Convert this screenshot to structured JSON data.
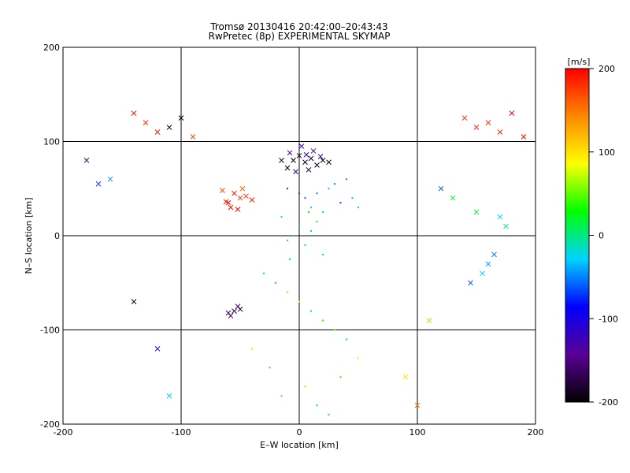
{
  "title": "Tromsø 20130416 20:42:00–20:43:43",
  "subtitle": "RwPretec (8p) EXPERIMENTAL SKYMAP",
  "chart_data": {
    "type": "scatter",
    "title": "Tromsø 20130416 20:42:00–20:43:43",
    "subtitle": "RwPretec (8p) EXPERIMENTAL SKYMAP",
    "xlabel": "E–W location [km]",
    "ylabel": "N–S location [km]",
    "xlim": [
      -200,
      200
    ],
    "ylim": [
      -200,
      200
    ],
    "xticks": [
      -200,
      -100,
      0,
      100,
      200
    ],
    "yticks": [
      -200,
      -100,
      0,
      100,
      200
    ],
    "grid": true,
    "colorbar": {
      "label": "[m/s]",
      "range": [
        -200,
        200
      ],
      "ticks": [
        200,
        100,
        0,
        -100,
        -200
      ],
      "colors": [
        "#000000",
        "#5a0096",
        "#0000ff",
        "#00d2ff",
        "#00ff00",
        "#ffff00",
        "#ff8800",
        "#ff0000"
      ]
    },
    "marker_types": [
      "x",
      "dot"
    ],
    "series": [
      {
        "x": [
          -5,
          0,
          5,
          10,
          15,
          -10,
          -15,
          20,
          25,
          8,
          -3,
          12,
          -8,
          18,
          2,
          6
        ],
        "y": [
          80,
          85,
          78,
          82,
          75,
          72,
          80,
          80,
          78,
          70,
          68,
          90,
          88,
          84,
          95,
          86
        ],
        "v": [
          -200,
          -190,
          -200,
          -185,
          -195,
          -200,
          -180,
          -190,
          -200,
          -170,
          -160,
          -150,
          -140,
          -130,
          -120,
          -110
        ],
        "marker": "x"
      },
      {
        "x": [
          -50,
          -55,
          -60,
          -45,
          -40,
          -58,
          -65,
          -48,
          -52,
          -62
        ],
        "y": [
          40,
          45,
          35,
          42,
          38,
          30,
          48,
          50,
          28,
          36
        ],
        "v": [
          180,
          190,
          200,
          175,
          185,
          195,
          170,
          160,
          200,
          190
        ],
        "marker": "x"
      },
      {
        "x": [
          5,
          15,
          25,
          35,
          10,
          20,
          30,
          40,
          0,
          -10,
          45,
          50
        ],
        "y": [
          40,
          45,
          50,
          35,
          30,
          25,
          55,
          60,
          45,
          50,
          40,
          30
        ],
        "v": [
          -60,
          -50,
          -40,
          -70,
          -30,
          -20,
          -55,
          -45,
          -65,
          -75,
          -35,
          -25
        ],
        "marker": "dot"
      },
      {
        "x": [
          -5,
          0,
          5,
          10,
          -10,
          15,
          -15,
          20,
          8,
          -8
        ],
        "y": [
          0,
          10,
          -10,
          5,
          -5,
          15,
          20,
          -20,
          25,
          -25
        ],
        "v": [
          -10,
          0,
          10,
          5,
          -5,
          15,
          20,
          -20,
          25,
          -15
        ],
        "marker": "dot"
      },
      {
        "x": [
          -55,
          -58,
          -52,
          -50,
          -60
        ],
        "y": [
          -80,
          -85,
          -75,
          -78,
          -82
        ],
        "v": [
          -170,
          -160,
          -150,
          -175,
          -165
        ],
        "marker": "x"
      },
      {
        "x": [
          -140,
          -130,
          -120,
          -110,
          -100,
          -90,
          160,
          170,
          180,
          150,
          140,
          190
        ],
        "y": [
          130,
          120,
          110,
          115,
          125,
          105,
          120,
          110,
          130,
          115,
          125,
          105
        ],
        "v": [
          190,
          180,
          200,
          -200,
          -195,
          170,
          180,
          190,
          200,
          185,
          175,
          195
        ],
        "marker": "x"
      },
      {
        "x": [
          160,
          155,
          165,
          170,
          150,
          145,
          175,
          -160,
          -170,
          -180,
          -140,
          120,
          130,
          110,
          -120,
          -110,
          100,
          90
        ],
        "y": [
          -30,
          -40,
          -20,
          20,
          25,
          -50,
          10,
          60,
          55,
          80,
          -70,
          50,
          40,
          -90,
          -120,
          -170,
          -180,
          -150
        ],
        "v": [
          -40,
          -30,
          -50,
          -20,
          10,
          -60,
          0,
          -45,
          -70,
          -150,
          -200,
          -60,
          20,
          60,
          -80,
          -30,
          150,
          100
        ],
        "marker": "x"
      },
      {
        "x": [
          -30,
          -20,
          -10,
          0,
          10,
          20,
          30,
          40,
          -40,
          50,
          -25,
          35,
          5,
          -15,
          15,
          25
        ],
        "y": [
          -40,
          -50,
          -60,
          -70,
          -80,
          -90,
          -100,
          -110,
          -120,
          -130,
          -140,
          -150,
          -160,
          -170,
          -180,
          -190
        ],
        "v": [
          10,
          30,
          60,
          80,
          20,
          40,
          50,
          -10,
          70,
          90,
          0,
          35,
          65,
          45,
          15,
          25
        ],
        "marker": "dot"
      }
    ]
  }
}
